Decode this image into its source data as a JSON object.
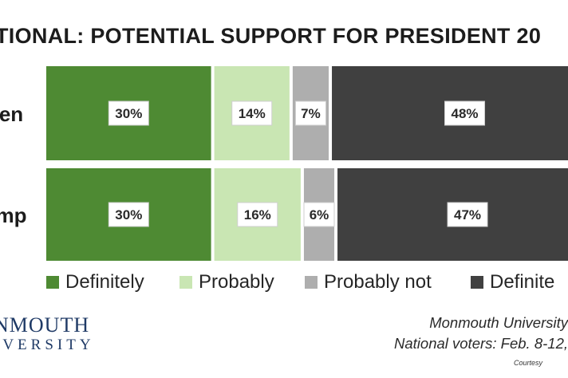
{
  "title": "TIONAL: POTENTIAL SUPPORT FOR PRESIDENT 20",
  "chart_data": {
    "type": "bar",
    "orientation": "horizontal",
    "stacked": true,
    "categories": [
      "en",
      "mp"
    ],
    "series": [
      {
        "name": "Definitely",
        "values": [
          30,
          30
        ],
        "color": "#4e8a33"
      },
      {
        "name": "Probably",
        "values": [
          14,
          16
        ],
        "color": "#c9e6b3"
      },
      {
        "name": "Probably not",
        "values": [
          7,
          6
        ],
        "color": "#aeaeae"
      },
      {
        "name": "Definite",
        "values": [
          48,
          47
        ],
        "color": "#404040"
      }
    ],
    "data_labels": [
      [
        "30%",
        "14%",
        "7%",
        "48%"
      ],
      [
        "30%",
        "16%",
        "6%",
        "47%"
      ]
    ],
    "legend_position": "bottom"
  },
  "footer": {
    "logo_top": "NMOUTH",
    "logo_bottom": "IVERSITY",
    "source_line1": "Monmouth University",
    "source_line2": "National voters: Feb. 8-12,",
    "courtesy": "Courtesy"
  }
}
